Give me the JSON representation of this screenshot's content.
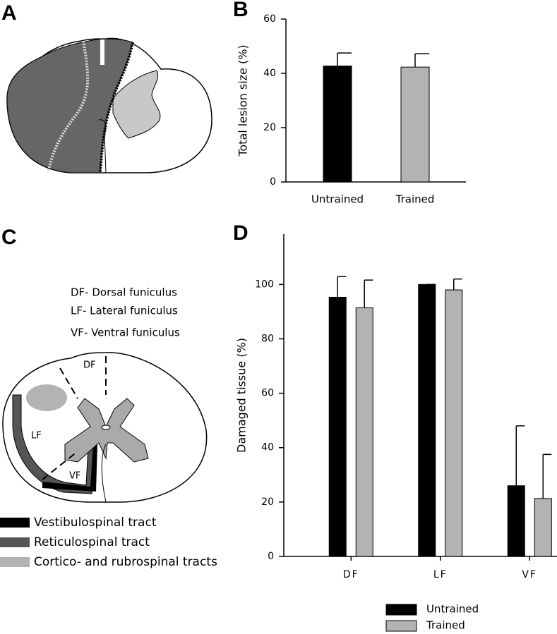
{
  "diagram_a": {
    "label": "A"
  },
  "diagram_c": {
    "label": "C",
    "definitions": [
      "DF- Dorsal funiculus",
      "LF- Lateral funiculus",
      "VF- Ventral funiculus"
    ],
    "region_labels": [
      "DF",
      "LF",
      "VF"
    ],
    "legend": [
      {
        "name": "Vestibulospinal tract",
        "color": "#000000"
      },
      {
        "name": "Reticulospinal tract",
        "color": "#555555"
      },
      {
        "name": "Cortico- and rubrospinal tracts",
        "color": "#b3b3b3"
      }
    ]
  },
  "chart_data": [
    {
      "type": "bar",
      "panel_label": "B",
      "y_label": "Total lesion size  (%)",
      "categories": [
        "Untrained",
        "Trained"
      ],
      "values": [
        42.7,
        42.3
      ],
      "errors": [
        4.8,
        4.9
      ],
      "colors": [
        "#000000",
        "#b3b3b3"
      ],
      "ylim": [
        0,
        60
      ],
      "yticks": [
        0,
        20,
        40,
        60
      ]
    },
    {
      "type": "bar",
      "panel_label": "D",
      "y_label": "Damaged tissue (%)",
      "categories": [
        "DF",
        "LF",
        "VF"
      ],
      "series": [
        {
          "name": "Untrained",
          "color": "#000000",
          "values": [
            95.3,
            100,
            26
          ],
          "errors": [
            7.6,
            0,
            22
          ]
        },
        {
          "name": "Trained",
          "color": "#b3b3b3",
          "values": [
            91.4,
            98,
            21.3
          ],
          "errors": [
            10.2,
            4,
            16.2
          ]
        }
      ],
      "ylim": [
        0,
        118.5
      ],
      "yticks": [
        0,
        20,
        40,
        60,
        80,
        100
      ]
    }
  ]
}
